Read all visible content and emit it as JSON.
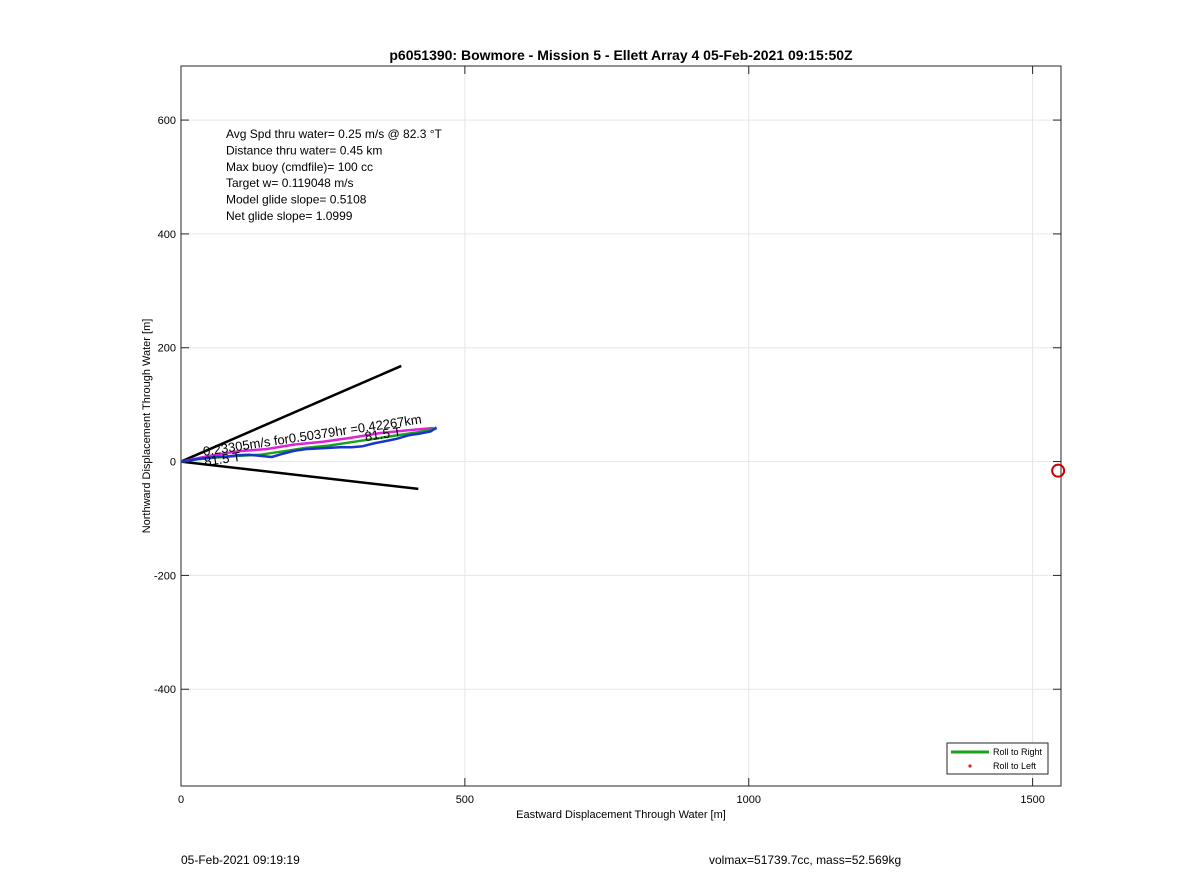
{
  "chart_data": {
    "type": "line",
    "title": "p6051390: Bowmore - Mission 5 - Ellett Array 4 05-Feb-2021 09:15:50Z",
    "xlabel": "Eastward Displacement Through Water [m]",
    "ylabel": "Northward Displacement Through Water [m]",
    "xlim": [
      0,
      1550
    ],
    "ylim": [
      -570,
      695
    ],
    "xticks": [
      0,
      500,
      1000,
      1500
    ],
    "yticks": [
      -400,
      -200,
      0,
      200,
      400,
      600
    ],
    "grid": true,
    "legend_position": "bottom-right",
    "legend": [
      {
        "label": "Roll to Right",
        "color": "#1aa31a",
        "marker": "line"
      },
      {
        "label": "Roll to Left",
        "color": "#dd2222",
        "marker": "dot"
      }
    ],
    "stats": [
      "Avg Spd thru water=  0.25 m/s @  82.3 °T",
      "Distance thru water=  0.45 km",
      "Max buoy (cmdfile)= 100 cc",
      "Target w= 0.119048 m/s",
      "Model glide slope= 0.5108",
      "Net glide slope= 1.0999"
    ],
    "annotations": [
      {
        "text": "0.23305m/s for0.50379hr =0.42267km",
        "x": 40,
        "y": 10,
        "angle": -8.5
      },
      {
        "text": "81.5 T",
        "x": 325,
        "y": 36,
        "angle": -8.5
      },
      {
        "text": "81.5 T",
        "x": 42,
        "y": -8,
        "angle": -8.5
      }
    ],
    "cone_lines": [
      {
        "x": [
          0,
          388
        ],
        "y": [
          0,
          168
        ],
        "color": "#000000"
      },
      {
        "x": [
          0,
          418
        ],
        "y": [
          0,
          -48
        ],
        "color": "#000000"
      }
    ],
    "series": [
      {
        "color": "#dd22dd",
        "x": [
          0,
          50,
          100,
          150,
          200,
          250,
          300,
          350,
          400,
          445
        ],
        "y": [
          0,
          10,
          18,
          22,
          30,
          35,
          42,
          50,
          55,
          59
        ]
      },
      {
        "color": "#1aa31a",
        "x": [
          0,
          30,
          60,
          100,
          140,
          180,
          220,
          260,
          300,
          340,
          380,
          420,
          450
        ],
        "y": [
          0,
          4,
          7,
          10,
          12,
          18,
          24,
          28,
          34,
          40,
          46,
          52,
          58
        ]
      },
      {
        "color": "#1a33cc",
        "x": [
          0,
          20,
          40,
          60,
          80,
          100,
          120,
          140,
          160,
          180,
          200,
          220,
          240,
          260,
          280,
          300,
          320,
          340,
          360,
          380,
          400,
          420,
          440,
          450
        ],
        "y": [
          0,
          3,
          6,
          8,
          9,
          11,
          12,
          10,
          8,
          14,
          19,
          22,
          23,
          24,
          25,
          25,
          27,
          32,
          36,
          40,
          46,
          49,
          53,
          60
        ]
      }
    ],
    "endpoint_marker": {
      "x": 1545,
      "y": -16,
      "color": "#cc0000"
    }
  },
  "footer": {
    "date": "05-Feb-2021 09:19:19",
    "info": "volmax=51739.7cc, mass=52.569kg"
  }
}
